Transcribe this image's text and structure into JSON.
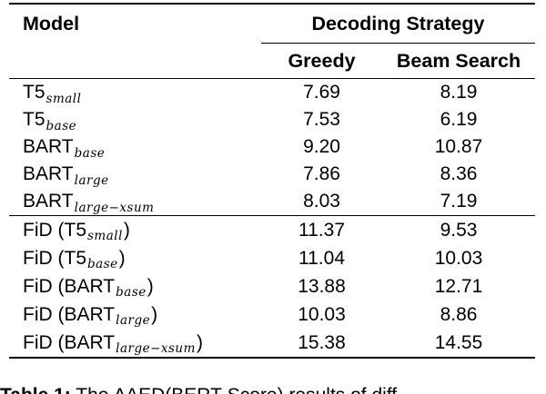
{
  "colors": {
    "ink": "#000000",
    "background": "#ffffff"
  },
  "table": {
    "header": {
      "model": "Model",
      "group": "Decoding Strategy",
      "greedy": "Greedy",
      "beam": "Beam Search"
    },
    "rows": [
      {
        "pre": "T5",
        "sub": "small",
        "post": "",
        "greedy": "7.69",
        "beam": "8.19"
      },
      {
        "pre": "T5",
        "sub": "base",
        "post": "",
        "greedy": "7.53",
        "beam": "6.19"
      },
      {
        "pre": "BART",
        "sub": "base",
        "post": "",
        "greedy": "9.20",
        "beam": "10.87"
      },
      {
        "pre": "BART",
        "sub": "large",
        "post": "",
        "greedy": "7.86",
        "beam": "8.36"
      },
      {
        "pre": "BART",
        "sub": "large−xsum",
        "post": "",
        "greedy": "8.03",
        "beam": "7.19"
      },
      {
        "pre": "FiD (T5",
        "sub": "small",
        "post": ")",
        "greedy": "11.37",
        "beam": "9.53"
      },
      {
        "pre": "FiD (T5",
        "sub": "base",
        "post": ")",
        "greedy": "11.04",
        "beam": "10.03"
      },
      {
        "pre": "FiD (BART",
        "sub": "base",
        "post": ")",
        "greedy": "13.88",
        "beam": "12.71"
      },
      {
        "pre": "FiD (BART",
        "sub": "large",
        "post": ")",
        "greedy": "10.03",
        "beam": "8.86"
      },
      {
        "pre": "FiD (BART",
        "sub": "large−xsum",
        "post": ")",
        "greedy": "15.38",
        "beam": "14.55"
      }
    ]
  },
  "caption": {
    "label": "Table 1:",
    "text": " The ∆AED(BERT-Score) results of diff"
  }
}
